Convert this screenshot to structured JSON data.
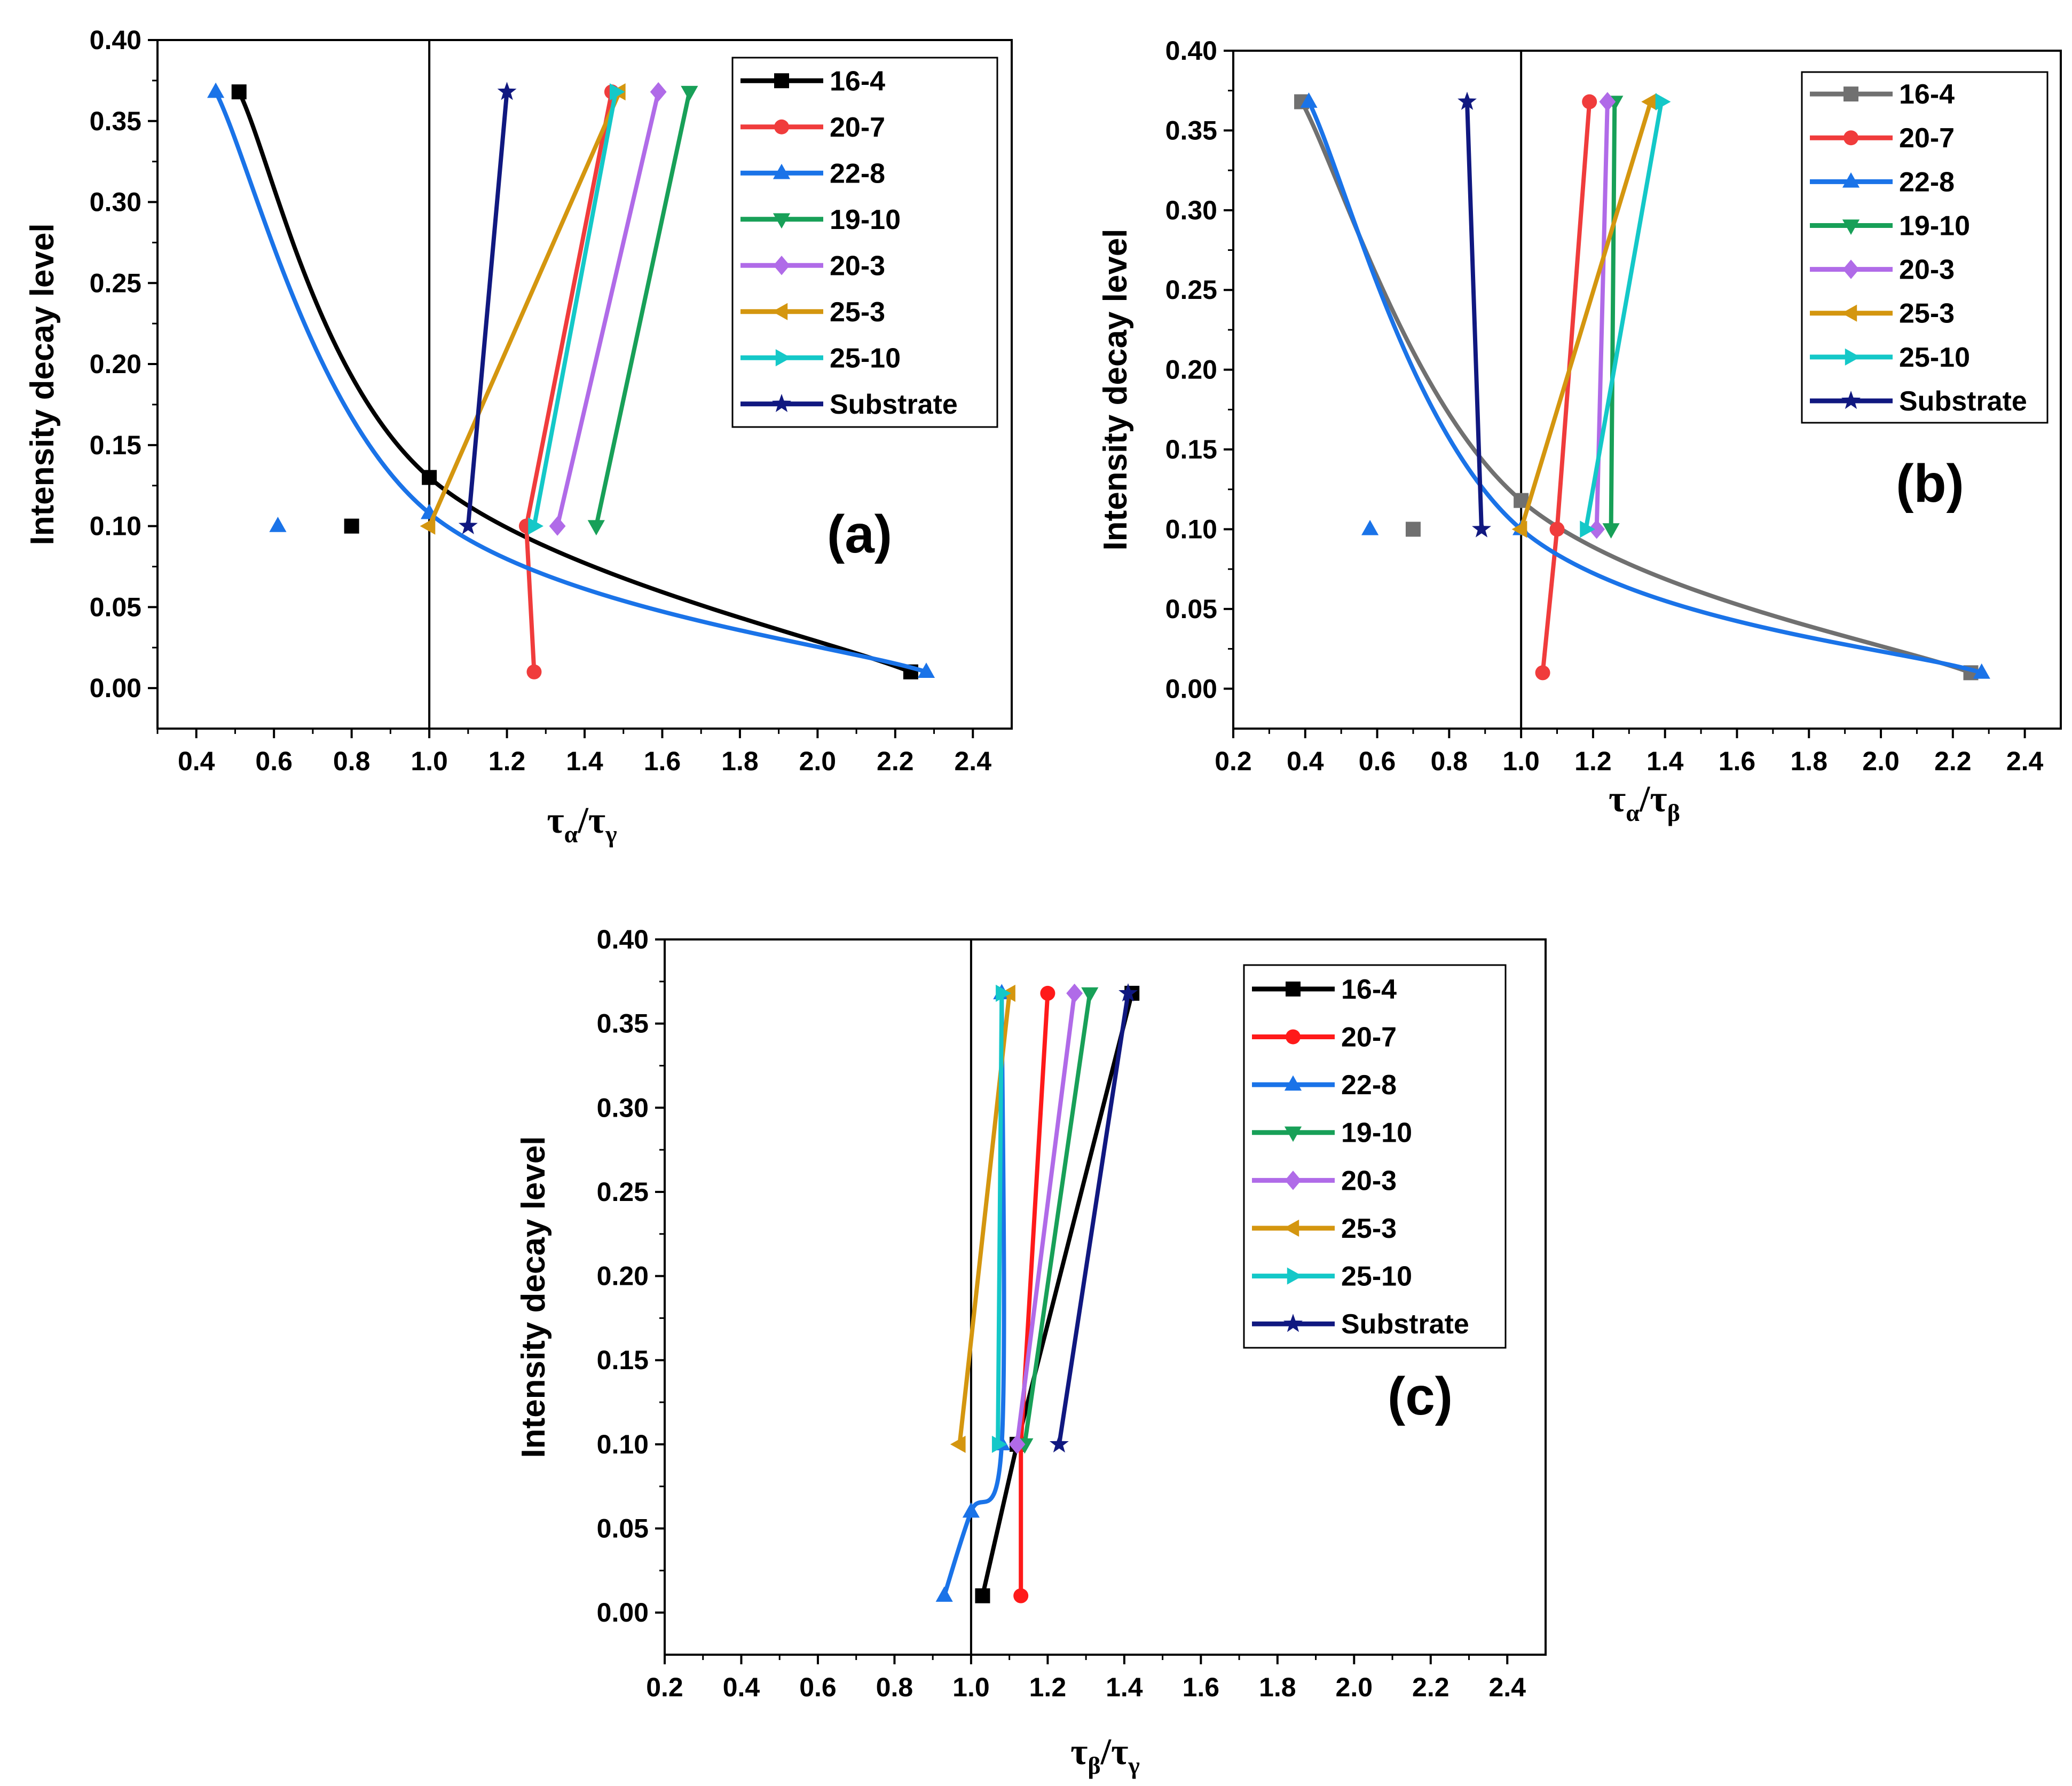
{
  "chart_data": [
    {
      "type": "line",
      "panel_label": "(a)",
      "ylabel": "Intensity decay level",
      "xlabel_main": "τ",
      "xlabel_sub1": "α",
      "xlabel_sep": "/τ",
      "xlabel_sub2": "γ",
      "xlim": [
        0.3,
        2.5
      ],
      "ylim": [
        -0.025,
        0.4
      ],
      "xticks": [
        0.4,
        0.6,
        0.8,
        1.0,
        1.2,
        1.4,
        1.6,
        1.8,
        2.0,
        2.2,
        2.4
      ],
      "xtick_labels": [
        "0.4",
        "0.6",
        "0.8",
        "1.0",
        "1.2",
        "1.4",
        "1.6",
        "1.8",
        "2.0",
        "2.2",
        "2.4"
      ],
      "yticks": [
        0.0,
        0.05,
        0.1,
        0.15,
        0.2,
        0.25,
        0.3,
        0.35,
        0.4
      ],
      "ytick_labels": [
        "0.00",
        "0.05",
        "0.10",
        "0.15",
        "0.20",
        "0.25",
        "0.30",
        "0.35",
        "0.40"
      ],
      "reference_line_x": 1.0,
      "legend_position": "top-right",
      "series": [
        {
          "name": "16-4",
          "color": "#000000",
          "marker": "square",
          "curve": "smooth",
          "points": [
            [
              0.51,
              0.368
            ],
            [
              1.0,
              0.13
            ],
            [
              2.24,
              0.01
            ]
          ],
          "outliers": [
            [
              0.8,
              0.1
            ]
          ]
        },
        {
          "name": "20-7",
          "color": "#f03c3c",
          "marker": "circle",
          "curve": "linear",
          "points": [
            [
              1.27,
              0.01
            ],
            [
              1.25,
              0.1
            ],
            [
              1.47,
              0.368
            ]
          ]
        },
        {
          "name": "22-8",
          "color": "#1a73e8",
          "marker": "triangle-up",
          "curve": "smooth",
          "points": [
            [
              0.45,
              0.368
            ],
            [
              1.0,
              0.108
            ],
            [
              2.28,
              0.01
            ]
          ],
          "outliers": [
            [
              0.61,
              0.1
            ]
          ]
        },
        {
          "name": "19-10",
          "color": "#18a058",
          "marker": "triangle-down",
          "curve": "linear",
          "points": [
            [
              1.43,
              0.1
            ],
            [
              1.67,
              0.368
            ]
          ]
        },
        {
          "name": "20-3",
          "color": "#b06be8",
          "marker": "diamond",
          "curve": "linear",
          "points": [
            [
              1.33,
              0.1
            ],
            [
              1.59,
              0.368
            ]
          ]
        },
        {
          "name": "25-3",
          "color": "#d4960f",
          "marker": "triangle-left",
          "curve": "linear",
          "points": [
            [
              1.0,
              0.1
            ],
            [
              1.49,
              0.368
            ]
          ]
        },
        {
          "name": "25-10",
          "color": "#14c8c8",
          "marker": "triangle-right",
          "curve": "linear",
          "points": [
            [
              1.27,
              0.1
            ],
            [
              1.48,
              0.368
            ]
          ]
        },
        {
          "name": "Substrate",
          "color": "#101880",
          "marker": "star",
          "curve": "linear",
          "points": [
            [
              1.1,
              0.1
            ],
            [
              1.2,
              0.368
            ]
          ]
        }
      ]
    },
    {
      "type": "line",
      "panel_label": "(b)",
      "ylabel": "Intensity decay level",
      "xlabel_main": "τ",
      "xlabel_sub1": "α",
      "xlabel_sep": "/τ",
      "xlabel_sub2": "β",
      "xlim": [
        0.2,
        2.5
      ],
      "ylim": [
        -0.025,
        0.4
      ],
      "xticks": [
        0.2,
        0.4,
        0.6,
        0.8,
        1.0,
        1.2,
        1.4,
        1.6,
        1.8,
        2.0,
        2.2,
        2.4
      ],
      "xtick_labels": [
        "0.2",
        "0.4",
        "0.6",
        "0.8",
        "1.0",
        "1.2",
        "1.4",
        "1.6",
        "1.8",
        "2.0",
        "2.2",
        "2.4"
      ],
      "yticks": [
        0.0,
        0.05,
        0.1,
        0.15,
        0.2,
        0.25,
        0.3,
        0.35,
        0.4
      ],
      "ytick_labels": [
        "0.00",
        "0.05",
        "0.10",
        "0.15",
        "0.20",
        "0.25",
        "0.30",
        "0.35",
        "0.40"
      ],
      "reference_line_x": 1.0,
      "legend_position": "top-right",
      "series": [
        {
          "name": "16-4",
          "color": "#707070",
          "marker": "square",
          "curve": "smooth",
          "points": [
            [
              0.39,
              0.368
            ],
            [
              1.0,
              0.118
            ],
            [
              2.25,
              0.01
            ]
          ],
          "outliers": [
            [
              0.7,
              0.1
            ]
          ]
        },
        {
          "name": "20-7",
          "color": "#f03c3c",
          "marker": "circle",
          "curve": "linear",
          "points": [
            [
              1.06,
              0.01
            ],
            [
              1.1,
              0.1
            ],
            [
              1.19,
              0.368
            ]
          ]
        },
        {
          "name": "22-8",
          "color": "#1a73e8",
          "marker": "triangle-up",
          "curve": "smooth",
          "points": [
            [
              0.41,
              0.368
            ],
            [
              1.0,
              0.1
            ],
            [
              2.28,
              0.01
            ]
          ],
          "outliers": [
            [
              0.58,
              0.1
            ]
          ]
        },
        {
          "name": "19-10",
          "color": "#18a058",
          "marker": "triangle-down",
          "curve": "linear",
          "points": [
            [
              1.25,
              0.1
            ],
            [
              1.26,
              0.368
            ]
          ]
        },
        {
          "name": "20-3",
          "color": "#b06be8",
          "marker": "diamond",
          "curve": "linear",
          "points": [
            [
              1.21,
              0.1
            ],
            [
              1.24,
              0.368
            ]
          ]
        },
        {
          "name": "25-3",
          "color": "#d4960f",
          "marker": "triangle-left",
          "curve": "linear",
          "points": [
            [
              1.0,
              0.1
            ],
            [
              1.36,
              0.368
            ]
          ]
        },
        {
          "name": "25-10",
          "color": "#14c8c8",
          "marker": "triangle-right",
          "curve": "linear",
          "points": [
            [
              1.18,
              0.1
            ],
            [
              1.39,
              0.368
            ]
          ]
        },
        {
          "name": "Substrate",
          "color": "#101880",
          "marker": "star",
          "curve": "linear",
          "points": [
            [
              0.89,
              0.1
            ],
            [
              0.85,
              0.368
            ]
          ]
        }
      ]
    },
    {
      "type": "line",
      "panel_label": "(c)",
      "ylabel": "Intensity decay level",
      "xlabel_main": "τ",
      "xlabel_sub1": "β",
      "xlabel_sep": "/τ",
      "xlabel_sub2": "γ",
      "xlim": [
        0.2,
        2.5
      ],
      "ylim": [
        -0.025,
        0.4
      ],
      "xticks": [
        0.2,
        0.4,
        0.6,
        0.8,
        1.0,
        1.2,
        1.4,
        1.6,
        1.8,
        2.0,
        2.2,
        2.4
      ],
      "xtick_labels": [
        "0.2",
        "0.4",
        "0.6",
        "0.8",
        "1.0",
        "1.2",
        "1.4",
        "1.6",
        "1.8",
        "2.0",
        "2.2",
        "2.4"
      ],
      "yticks": [
        0.0,
        0.05,
        0.1,
        0.15,
        0.2,
        0.25,
        0.3,
        0.35,
        0.4
      ],
      "ytick_labels": [
        "0.00",
        "0.05",
        "0.10",
        "0.15",
        "0.20",
        "0.25",
        "0.30",
        "0.35",
        "0.40"
      ],
      "reference_line_x": 1.0,
      "legend_position": "top-right",
      "series": [
        {
          "name": "16-4",
          "color": "#000000",
          "marker": "square",
          "curve": "linear",
          "points": [
            [
              1.03,
              0.01
            ],
            [
              1.12,
              0.1
            ],
            [
              1.42,
              0.368
            ]
          ]
        },
        {
          "name": "20-7",
          "color": "#ff1a1a",
          "marker": "circle",
          "curve": "linear",
          "points": [
            [
              1.13,
              0.01
            ],
            [
              1.13,
              0.1
            ],
            [
              1.2,
              0.368
            ]
          ]
        },
        {
          "name": "22-8",
          "color": "#1a73e8",
          "marker": "triangle-up",
          "curve": "smooth",
          "points": [
            [
              0.93,
              0.01
            ],
            [
              1.0,
              0.06
            ],
            [
              1.08,
              0.1
            ],
            [
              1.08,
              0.368
            ]
          ]
        },
        {
          "name": "19-10",
          "color": "#18a058",
          "marker": "triangle-down",
          "curve": "linear",
          "points": [
            [
              1.14,
              0.1
            ],
            [
              1.31,
              0.368
            ]
          ]
        },
        {
          "name": "20-3",
          "color": "#b06be8",
          "marker": "diamond",
          "curve": "linear",
          "points": [
            [
              1.12,
              0.1
            ],
            [
              1.27,
              0.368
            ]
          ]
        },
        {
          "name": "25-3",
          "color": "#d4960f",
          "marker": "triangle-left",
          "curve": "linear",
          "points": [
            [
              0.97,
              0.1
            ],
            [
              1.1,
              0.368
            ]
          ]
        },
        {
          "name": "25-10",
          "color": "#14c8c8",
          "marker": "triangle-right",
          "curve": "linear",
          "points": [
            [
              1.07,
              0.1
            ],
            [
              1.08,
              0.368
            ]
          ]
        },
        {
          "name": "Substrate",
          "color": "#101880",
          "marker": "star",
          "curve": "linear",
          "points": [
            [
              1.23,
              0.1
            ],
            [
              1.41,
              0.368
            ]
          ]
        }
      ]
    }
  ]
}
